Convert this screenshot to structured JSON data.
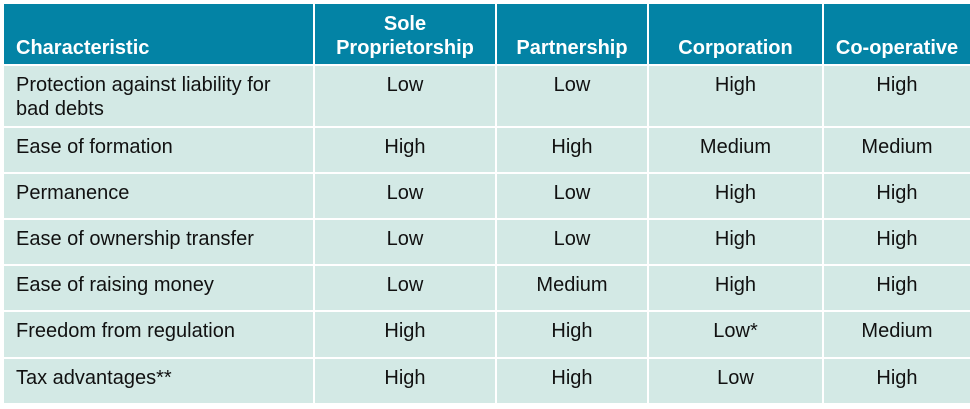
{
  "table": {
    "headers": [
      "Characteristic",
      "Sole Proprietorship",
      "Partnership",
      "Corporation",
      "Co-operative"
    ],
    "rows": [
      [
        "Protection against liability for bad debts",
        "Low",
        "Low",
        "High",
        "High"
      ],
      [
        "Ease of formation",
        "High",
        "High",
        "Medium",
        "Medium"
      ],
      [
        "Permanence",
        "Low",
        "Low",
        "High",
        "High"
      ],
      [
        "Ease of ownership transfer",
        "Low",
        "Low",
        "High",
        "High"
      ],
      [
        "Ease of raising money",
        "Low",
        "Medium",
        "High",
        "High"
      ],
      [
        "Freedom from regulation",
        "High",
        "High",
        "Low*",
        "Medium"
      ],
      [
        "Tax advantages**",
        "High",
        "High",
        "Low",
        "High"
      ]
    ]
  },
  "colors": {
    "header_bg": "#0383a5",
    "row_bg": "#d3e9e5",
    "header_text": "#ffffff",
    "body_text": "#111111"
  }
}
